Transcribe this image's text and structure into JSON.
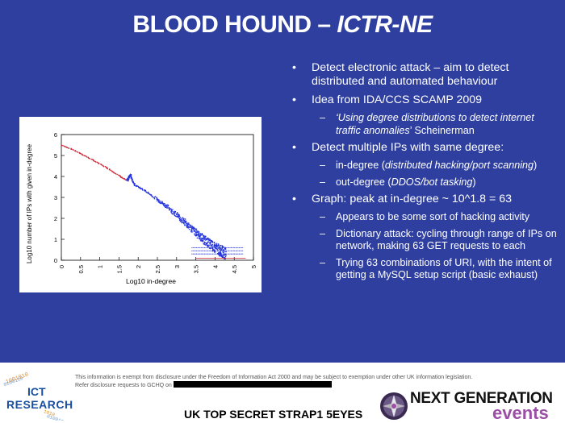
{
  "title": {
    "main": "BLOOD HOUND – ",
    "italic": "ICTR-NE"
  },
  "bullets": [
    {
      "level": 1,
      "parts": [
        {
          "t": "Detect electronic attack – aim to detect distributed and automated behaviour"
        }
      ]
    },
    {
      "level": 1,
      "parts": [
        {
          "t": "Idea from IDA/CCS SCAMP 2009"
        }
      ]
    },
    {
      "level": 2,
      "parts": [
        {
          "t": "‘Using degree distributions to detect internet traffic anomalies",
          "i": true
        },
        {
          "t": "’ Scheinerman"
        }
      ]
    },
    {
      "level": 1,
      "parts": [
        {
          "t": "Detect multiple IPs with same degree:"
        }
      ]
    },
    {
      "level": 2,
      "parts": [
        {
          "t": "in-degree ("
        },
        {
          "t": "distributed hacking/port scanning",
          "i": true
        },
        {
          "t": ")"
        }
      ]
    },
    {
      "level": 2,
      "parts": [
        {
          "t": "out-degree ("
        },
        {
          "t": "DDOS/bot tasking",
          "i": true
        },
        {
          "t": ")"
        }
      ]
    },
    {
      "level": 1,
      "parts": [
        {
          "t": "Graph: peak at in-degree ~ 10^1.8 = 63"
        }
      ]
    },
    {
      "level": 2,
      "parts": [
        {
          "t": "Appears to be some sort of hacking activity"
        }
      ]
    },
    {
      "level": 2,
      "parts": [
        {
          "t": "Dictionary attack: cycling through range of IPs on network, making 63 GET requests to each"
        }
      ]
    },
    {
      "level": 2,
      "parts": [
        {
          "t": "Trying 63 combinations of URI, with the intent of getting a MySQL setup script (basic exhaust)"
        }
      ]
    }
  ],
  "chart_data": {
    "type": "scatter",
    "xlabel": "Log10 in-degree",
    "ylabel": "Log10 number of IPs with given in-degree",
    "xlim": [
      0,
      5
    ],
    "ylim": [
      0,
      6
    ],
    "xticks": [
      "0",
      "0.5",
      "1",
      "1.5",
      "2",
      "2.5",
      "3",
      "3.5",
      "4",
      "4.5",
      "5"
    ],
    "yticks": [
      "0",
      "1",
      "2",
      "3",
      "4",
      "5",
      "6"
    ],
    "series": [
      {
        "color": "#cc2233",
        "x": [
          0,
          0.3,
          0.6,
          0.9,
          1.2,
          1.5,
          1.7
        ],
        "y": [
          5.5,
          5.28,
          5.0,
          4.7,
          4.4,
          4.05,
          3.8
        ]
      },
      {
        "color": "#2233dd",
        "x": [
          1.7,
          1.8,
          1.9,
          2.2,
          2.5,
          2.8,
          3.1,
          3.4,
          3.7,
          4.0,
          4.3
        ],
        "y": [
          3.8,
          4.1,
          3.6,
          3.3,
          2.9,
          2.5,
          2.0,
          1.5,
          1.0,
          0.6,
          0.3
        ]
      }
    ],
    "peak": {
      "x": 1.8,
      "y": 4.1
    }
  },
  "footer": {
    "disclaimer_line1": "This information is exempt from disclosure under the Freedom of Information Act 2000 and may be subject to exemption under other UK information legislation.",
    "disclaimer_line2": "Refer disclosure requests to GCHQ on",
    "classification": "UK TOP SECRET STRAP1 5EYES",
    "ict_logo_line1": "ICT",
    "ict_logo_line2": "RESEARCH",
    "ng_logo_line1": "NEXT GENERATION",
    "ng_logo_line2": "events"
  },
  "colors": {
    "background": "#2e3fa0",
    "text": "#ffffff",
    "ng_accent": "#9a4fa5",
    "ict_blue": "#1a4fa0"
  }
}
